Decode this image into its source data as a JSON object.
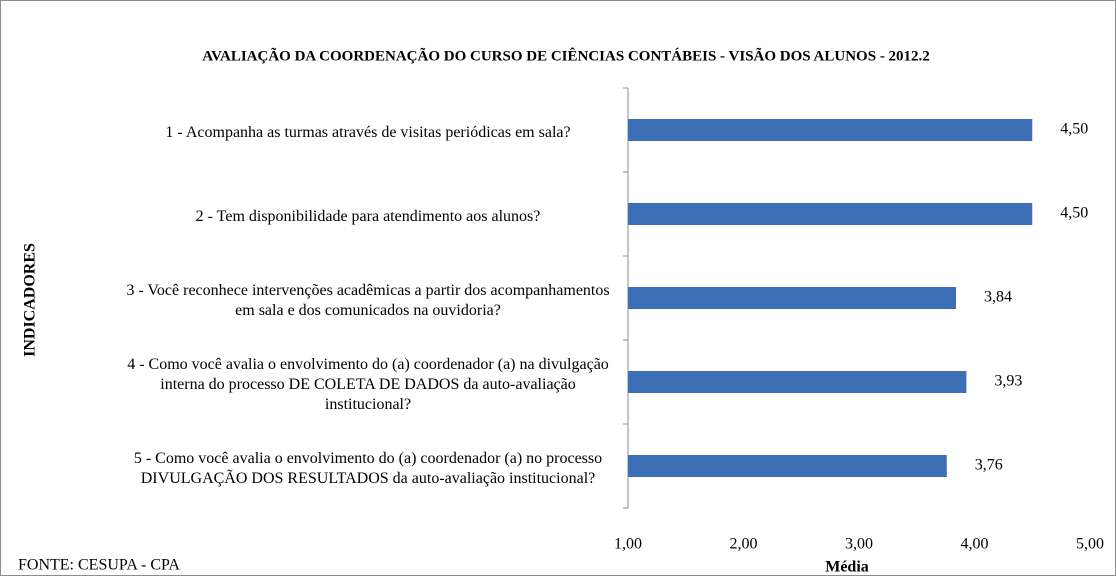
{
  "chart_data": {
    "type": "barh",
    "title": "AVALIAÇÃO DA COORDENAÇÃO DO CURSO DE CIÊNCIAS CONTÁBEIS  -  VISÃO DOS ALUNOS - 2012.2",
    "categories": [
      "1 - Acompanha as turmas através de visitas periódicas em sala?",
      "2 - Tem disponibilidade para atendimento aos alunos?",
      "3 - Você reconhece  intervenções acadêmicas a partir dos acompanhamentos em sala e  dos comunicados  na ouvidoria?",
      "4 - Como você avalia o envolvimento do (a) coordenador (a) na divulgação interna do processo DE COLETA DE DADOS da auto-avaliação institucional?",
      "5 - Como você avalia o envolvimento do  (a) coordenador (a) no processo DIVULGAÇÃO DOS RESULTADOS da auto-avaliação institucional?"
    ],
    "values": [
      4.5,
      4.5,
      3.84,
      3.93,
      3.76
    ],
    "value_labels": [
      "4,50",
      "4,50",
      "3,84",
      "3,93",
      "3,76"
    ],
    "color": "#3d6fb6",
    "xlim": [
      1,
      5
    ],
    "xticks": [
      {
        "value": 1,
        "label": "1,00"
      },
      {
        "value": 2,
        "label": "2,00"
      },
      {
        "value": 3,
        "label": "3,00"
      },
      {
        "value": 4,
        "label": "4,00"
      },
      {
        "value": 5,
        "label": "5,00"
      }
    ],
    "xlabel": "Média",
    "ylabel": "INDICADORES",
    "source": "FONTE: CESUPA - CPA"
  }
}
